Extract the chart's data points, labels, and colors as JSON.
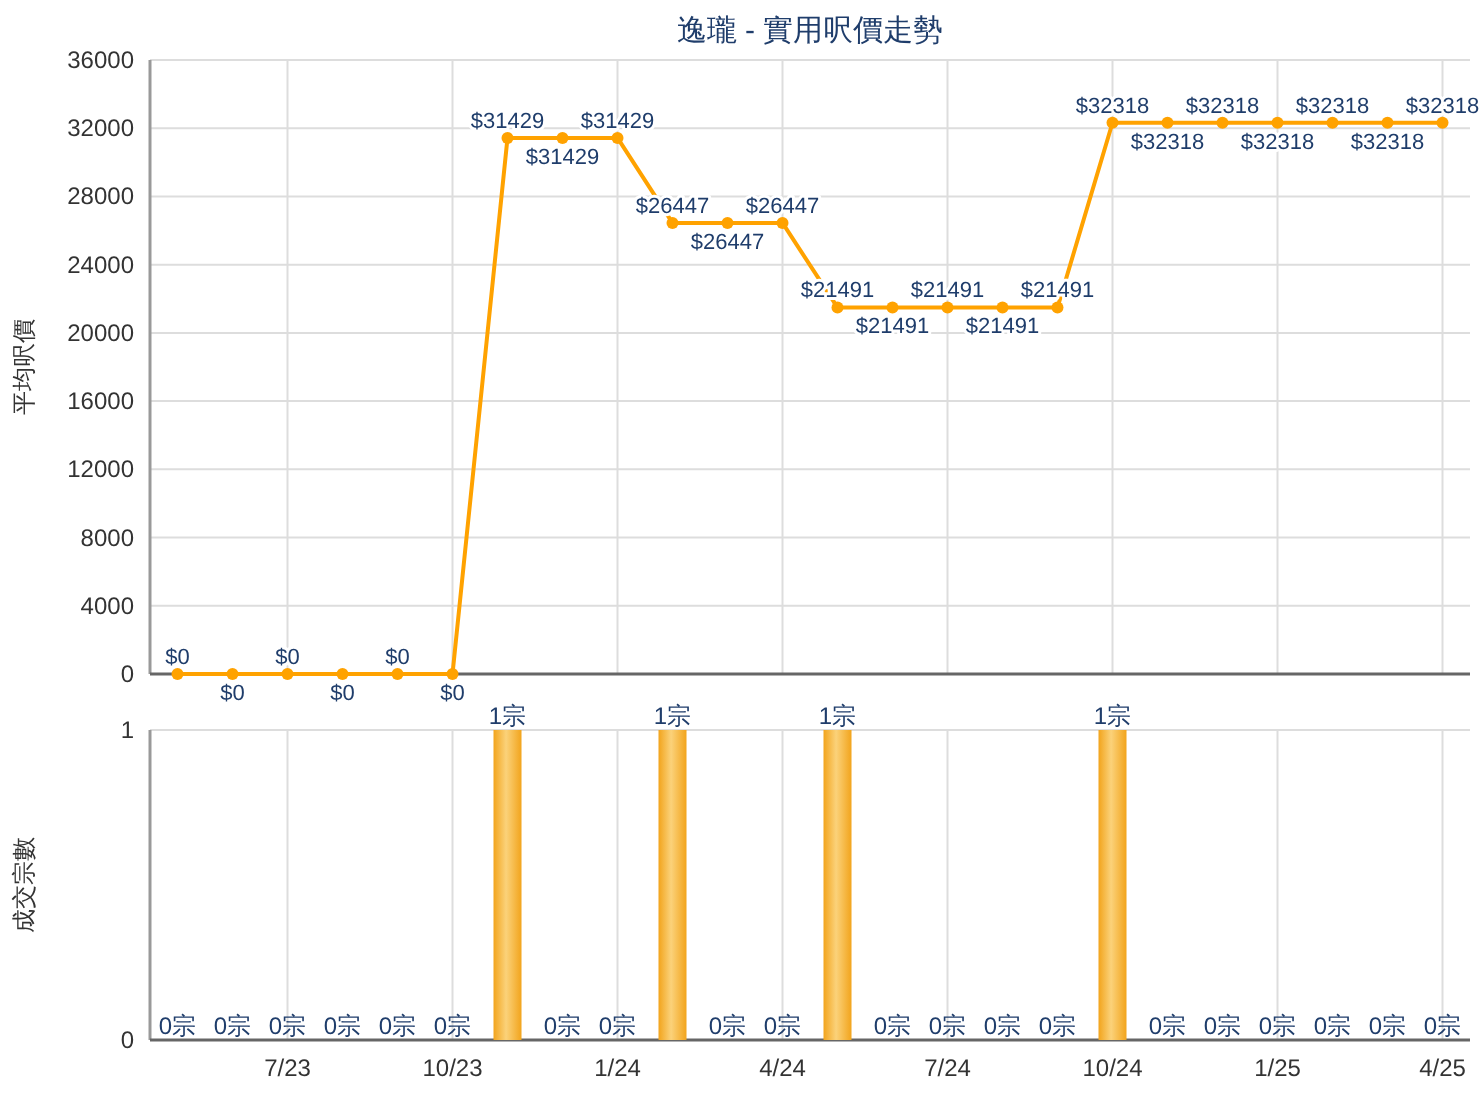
{
  "chart_data": [
    {
      "type": "line",
      "title": "逸瓏 - 實用呎價走勢",
      "ylabel": "平均呎價",
      "categories": [
        null,
        null,
        null,
        null,
        null,
        null,
        null,
        null,
        null,
        null,
        null,
        null,
        null,
        null,
        null,
        null,
        null,
        null,
        null,
        null,
        null,
        null,
        null,
        null
      ],
      "values": [
        0,
        0,
        0,
        0,
        0,
        0,
        31429,
        31429,
        31429,
        26447,
        26447,
        26447,
        21491,
        21491,
        21491,
        21491,
        21491,
        32318,
        32318,
        32318,
        32318,
        32318,
        32318,
        32318
      ],
      "value_labels": [
        "$0",
        "$0",
        "$0",
        "$0",
        "$0",
        "$0",
        "$31429",
        "$31429",
        "$31429",
        "$26447",
        "$26447",
        "$26447",
        "$21491",
        "$21491",
        "$21491",
        "$21491",
        "$21491",
        "$32318",
        "$32318",
        "$32318",
        "$32318",
        "$32318",
        "$32318",
        "$32318"
      ],
      "color": "#ffa200",
      "ylim": [
        0,
        36000
      ],
      "yticks": [
        0,
        4000,
        8000,
        12000,
        16000,
        20000,
        24000,
        28000,
        32000,
        36000
      ],
      "grid": true,
      "marker": "circle",
      "tick_labels": "y"
    },
    {
      "type": "bar",
      "ylabel": "成交宗數",
      "categories": [
        null,
        null,
        "7/23",
        null,
        null,
        "10/23",
        null,
        null,
        "1/24",
        null,
        null,
        "4/24",
        null,
        null,
        "7/24",
        null,
        null,
        "10/24",
        null,
        null,
        "1/25",
        null,
        null,
        "4/25"
      ],
      "values": [
        0,
        0,
        0,
        0,
        0,
        0,
        1,
        0,
        0,
        1,
        0,
        0,
        1,
        0,
        0,
        0,
        0,
        1,
        0,
        0,
        0,
        0,
        0,
        0
      ],
      "value_labels": [
        "0宗",
        "0宗",
        "0宗",
        "0宗",
        "0宗",
        "0宗",
        "1宗",
        "0宗",
        "0宗",
        "1宗",
        "0宗",
        "0宗",
        "1宗",
        "0宗",
        "0宗",
        "0宗",
        "0宗",
        "1宗",
        "0宗",
        "0宗",
        "0宗",
        "0宗",
        "0宗",
        "0宗"
      ],
      "color": "#f2a41c",
      "ylim": [
        0,
        1
      ],
      "yticks": [
        0,
        1
      ],
      "grid": true
    }
  ]
}
